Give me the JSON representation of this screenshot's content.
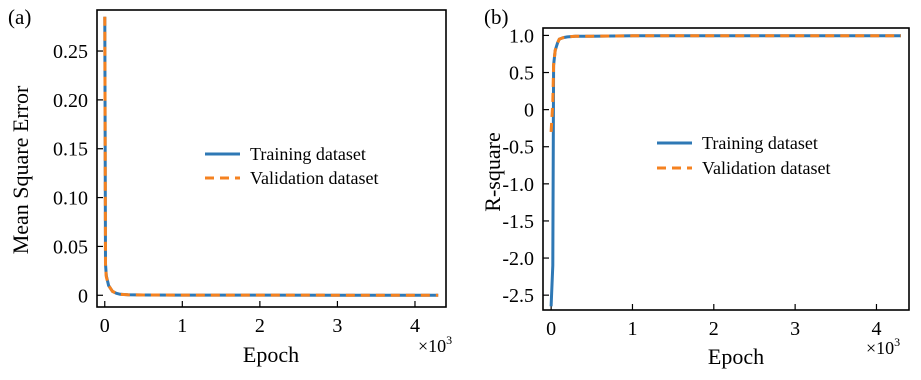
{
  "colors": {
    "training": "#2e78b5",
    "validation": "#f58220"
  },
  "chart_data": [
    {
      "type": "line",
      "panel_label": "(a)",
      "xlabel": "Epoch",
      "ylabel": "Mean Square Error",
      "x_multiplier": "×10",
      "x_multiplier_exp": "3",
      "xlim": [
        -0.1,
        4.4
      ],
      "ylim": [
        -0.012,
        0.292
      ],
      "xticks": [
        0,
        1,
        2,
        3,
        4
      ],
      "xtick_labels": [
        "0",
        "1",
        "2",
        "3",
        "4"
      ],
      "yticks": [
        0,
        0.05,
        0.1,
        0.15,
        0.2,
        0.25
      ],
      "ytick_labels": [
        "0",
        "0.05",
        "0.10",
        "0.15",
        "0.20",
        "0.25"
      ],
      "legend": {
        "placement": "center-right",
        "entries": [
          "Training dataset",
          "Validation dataset"
        ]
      },
      "series": [
        {
          "name": "Training dataset",
          "style": "solid",
          "x": [
            0,
            0.01,
            0.02,
            0.05,
            0.1,
            0.15,
            0.2,
            0.3,
            0.5,
            1,
            2,
            3,
            4,
            4.3
          ],
          "y": [
            0.285,
            0.032,
            0.02,
            0.01,
            0.004,
            0.002,
            0.001,
            0.0005,
            0.0003,
            0.0002,
            0.0002,
            0.0001,
            0.0001,
            0.0001
          ]
        },
        {
          "name": "Validation dataset",
          "style": "dashed",
          "x": [
            0,
            0.01,
            0.02,
            0.05,
            0.1,
            0.15,
            0.2,
            0.3,
            0.5,
            1,
            2,
            3,
            4,
            4.3
          ],
          "y": [
            0.285,
            0.03,
            0.019,
            0.01,
            0.004,
            0.002,
            0.001,
            0.0005,
            0.0003,
            0.0002,
            0.0002,
            0.0001,
            0.0001,
            0.0001
          ]
        }
      ]
    },
    {
      "type": "line",
      "panel_label": "(b)",
      "xlabel": "Epoch",
      "ylabel": "R-square",
      "x_multiplier": "×10",
      "x_multiplier_exp": "3",
      "xlim": [
        -0.1,
        4.4
      ],
      "ylim": [
        -2.7,
        1.1
      ],
      "xticks": [
        0,
        1,
        2,
        3,
        4
      ],
      "xtick_labels": [
        "0",
        "1",
        "2",
        "3",
        "4"
      ],
      "yticks": [
        -2.5,
        -2.0,
        -1.5,
        -1.0,
        -0.5,
        0,
        0.5,
        1.0
      ],
      "ytick_labels": [
        "-2.5",
        "-2.0",
        "-1.5",
        "-1.0",
        "-0.5",
        "0",
        "0.5",
        "1.0"
      ],
      "legend": {
        "placement": "center-right",
        "entries": [
          "Training dataset",
          "Validation dataset"
        ]
      },
      "series": [
        {
          "name": "Training dataset",
          "style": "solid",
          "x": [
            0,
            0.02,
            0.03,
            0.05,
            0.08,
            0.1,
            0.15,
            0.2,
            0.3,
            0.5,
            1,
            2,
            3,
            4,
            4.3
          ],
          "y": [
            -2.65,
            -2.1,
            0.6,
            0.8,
            0.9,
            0.95,
            0.97,
            0.98,
            0.99,
            0.99,
            0.995,
            0.995,
            0.995,
            0.995,
            0.995
          ]
        },
        {
          "name": "Validation dataset",
          "style": "dashed",
          "x": [
            0,
            0.02,
            0.03,
            0.05,
            0.08,
            0.1,
            0.15,
            0.2,
            0.3,
            0.5,
            1,
            2,
            3,
            4,
            4.3
          ],
          "y": [
            -0.3,
            0.1,
            0.6,
            0.8,
            0.9,
            0.95,
            0.97,
            0.98,
            0.99,
            0.99,
            0.995,
            0.995,
            0.995,
            0.995,
            0.995
          ]
        }
      ]
    }
  ]
}
